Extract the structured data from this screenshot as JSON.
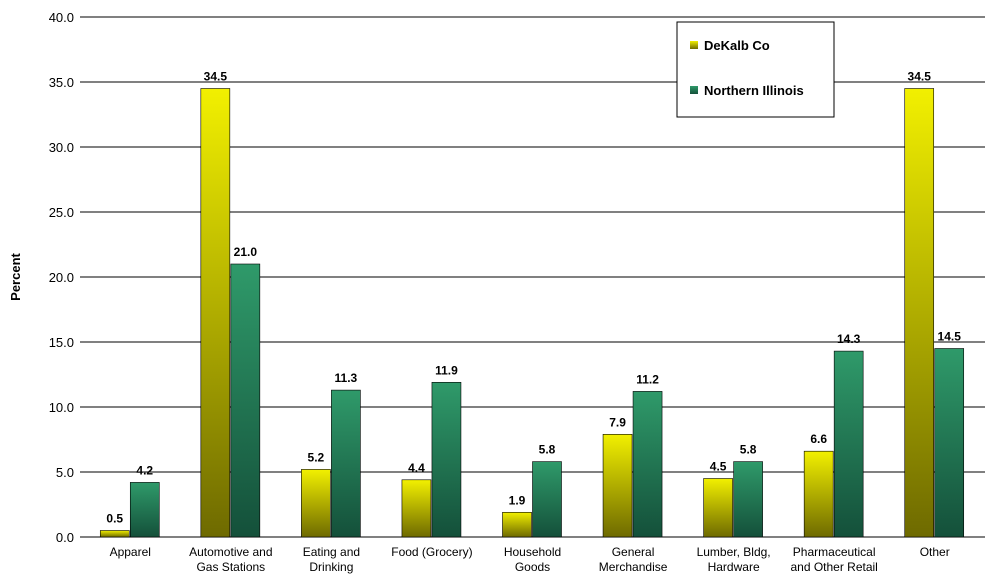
{
  "chart_data": {
    "type": "bar",
    "title": "",
    "xlabel": "",
    "ylabel": "Percent",
    "ylim": [
      0,
      40
    ],
    "yticks": [
      "0.0",
      "5.0",
      "10.0",
      "15.0",
      "20.0",
      "25.0",
      "30.0",
      "35.0",
      "40.0"
    ],
    "categories": [
      [
        "Apparel"
      ],
      [
        "Automotive and",
        "Gas Stations"
      ],
      [
        "Eating and",
        "Drinking"
      ],
      [
        "Food (Grocery)"
      ],
      [
        "Household",
        "Goods"
      ],
      [
        "General",
        "Merchandise"
      ],
      [
        "Lumber, Bldg,",
        "Hardware"
      ],
      [
        "Pharmaceutical",
        "and Other Retail"
      ],
      [
        "Other"
      ]
    ],
    "series": [
      {
        "name": "DeKalb Co",
        "values": [
          0.5,
          34.5,
          5.2,
          4.4,
          1.9,
          7.9,
          4.5,
          6.6,
          34.5
        ]
      },
      {
        "name": "Northern Illinois",
        "values": [
          4.2,
          21.0,
          11.3,
          11.9,
          5.8,
          11.2,
          5.8,
          14.3,
          14.5
        ]
      }
    ],
    "data_label_format": "one_decimal",
    "grid": true,
    "legend_position": "top-right",
    "colors": {
      "series1_top": "#f2f000",
      "series1_bottom": "#6e6a00",
      "series2_top": "#2f9a6a",
      "series2_bottom": "#14503a",
      "gridline": "#000000"
    }
  }
}
